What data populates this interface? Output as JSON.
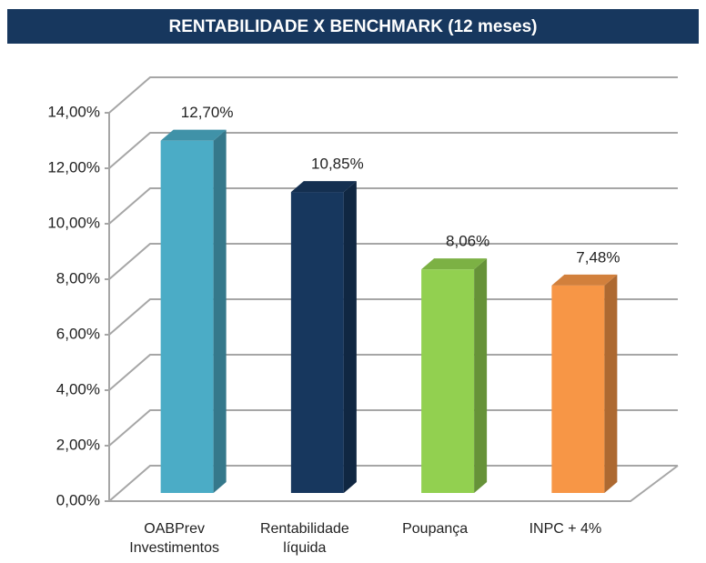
{
  "chart_data": {
    "type": "bar3d",
    "title": "RENTABILIDADE X BENCHMARK (12 meses)",
    "categories": [
      "OABPrev Investimentos",
      "Rentabilidade líquida",
      "Poupança",
      "INPC + 4%"
    ],
    "values": [
      12.7,
      10.85,
      8.06,
      7.48
    ],
    "value_labels": [
      "12,70%",
      "10,85%",
      "8,06%",
      "7,48%"
    ],
    "colors": [
      "#4bacc6",
      "#17375e",
      "#92d050",
      "#f79646"
    ],
    "ylim": [
      0,
      14
    ],
    "yticks": [
      {
        "value": 0,
        "label": "0,00%"
      },
      {
        "value": 2,
        "label": "2,00%"
      },
      {
        "value": 4,
        "label": "4,00%"
      },
      {
        "value": 6,
        "label": "6,00%"
      },
      {
        "value": 8,
        "label": "8,00%"
      },
      {
        "value": 10,
        "label": "10,00%"
      },
      {
        "value": 12,
        "label": "12,00%"
      },
      {
        "value": 14,
        "label": "14,00%"
      }
    ],
    "grid": true
  }
}
